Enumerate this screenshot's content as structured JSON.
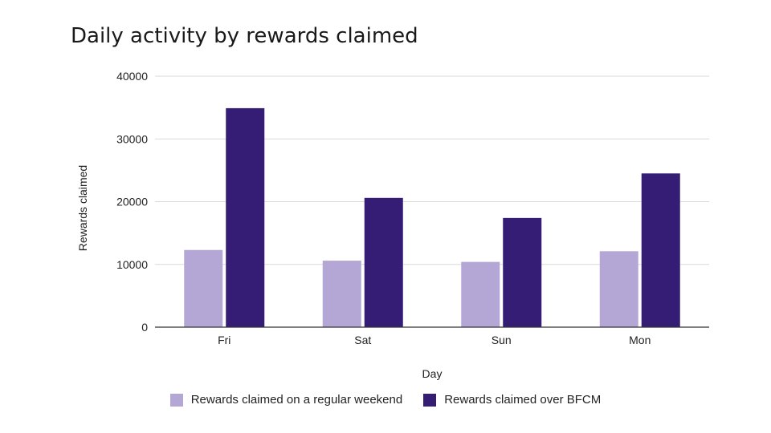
{
  "chart_data": {
    "type": "bar",
    "title": "Daily activity by rewards claimed",
    "xlabel": "Day",
    "ylabel": "Rewards claimed",
    "categories": [
      "Fri",
      "Sat",
      "Sun",
      "Mon"
    ],
    "series": [
      {
        "name": "Rewards claimed on a regular weekend",
        "color": "#b4a7d6",
        "values": [
          12300,
          10600,
          10400,
          12100
        ]
      },
      {
        "name": "Rewards claimed over BFCM",
        "color": "#351c75",
        "values": [
          34900,
          20600,
          17400,
          24500
        ]
      }
    ],
    "ylim": [
      0,
      40000
    ],
    "yticks": [
      "0",
      "10000",
      "20000",
      "30000",
      "40000"
    ],
    "grid": true,
    "legend_position": "bottom"
  }
}
